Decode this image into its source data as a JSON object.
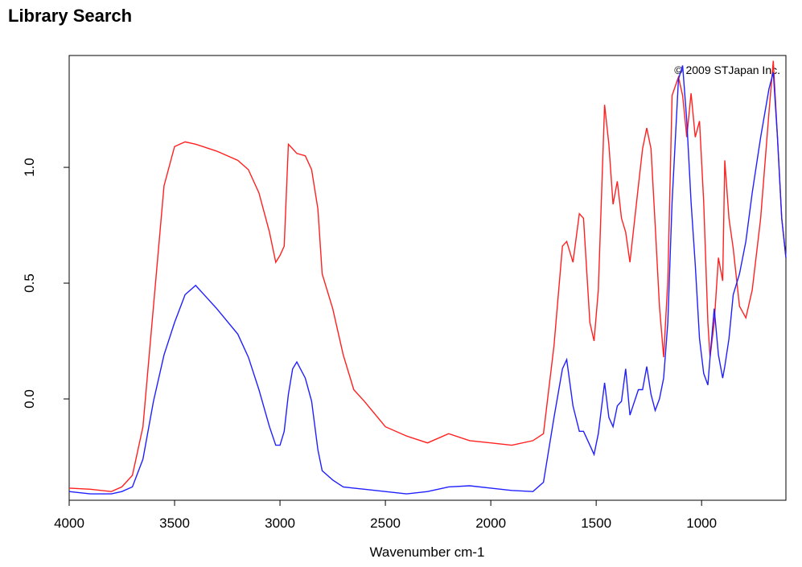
{
  "chart_data": {
    "type": "line",
    "title": "Library Search",
    "annotation": "© 2009 STJapan Inc.",
    "xlabel": "Wavenumber cm-1",
    "xlim": [
      4000,
      600
    ],
    "ylim": [
      -0.4375,
      1.483
    ],
    "xticks": [
      4000,
      3500,
      3000,
      2500,
      2000,
      1500,
      1000
    ],
    "yticks": [
      {
        "value": 0,
        "label": "0.0"
      },
      0.5,
      {
        "value": 1,
        "label": "1.0"
      }
    ],
    "x": [
      4000,
      3900,
      3800,
      3750,
      3700,
      3650,
      3600,
      3550,
      3500,
      3450,
      3400,
      3300,
      3200,
      3150,
      3100,
      3050,
      3020,
      3000,
      2980,
      2960,
      2940,
      2920,
      2880,
      2850,
      2820,
      2800,
      2750,
      2700,
      2650,
      2600,
      2500,
      2400,
      2300,
      2200,
      2100,
      2000,
      1900,
      1800,
      1750,
      1700,
      1660,
      1640,
      1610,
      1580,
      1560,
      1530,
      1510,
      1490,
      1460,
      1440,
      1420,
      1400,
      1380,
      1360,
      1340,
      1300,
      1280,
      1260,
      1240,
      1220,
      1200,
      1180,
      1160,
      1140,
      1110,
      1090,
      1070,
      1050,
      1030,
      1010,
      990,
      970,
      960,
      940,
      920,
      900,
      890,
      870,
      850,
      820,
      790,
      760,
      720,
      680,
      660,
      640,
      620,
      600
    ],
    "series": [
      {
        "color": "#ff2020",
        "values": [
          -0.385,
          -0.39,
          -0.4,
          -0.38,
          -0.33,
          -0.12,
          0.4,
          0.92,
          1.09,
          1.11,
          1.1,
          1.07,
          1.03,
          0.99,
          0.89,
          0.72,
          0.59,
          0.62,
          0.66,
          1.1,
          1.08,
          1.06,
          1.05,
          0.99,
          0.82,
          0.54,
          0.39,
          0.19,
          0.04,
          -0.01,
          -0.12,
          -0.16,
          -0.19,
          -0.15,
          -0.18,
          -0.19,
          -0.2,
          -0.18,
          -0.15,
          0.23,
          0.66,
          0.68,
          0.59,
          0.8,
          0.78,
          0.33,
          0.25,
          0.47,
          1.27,
          1.1,
          0.84,
          0.94,
          0.78,
          0.72,
          0.59,
          0.92,
          1.08,
          1.17,
          1.08,
          0.75,
          0.4,
          0.18,
          0.51,
          1.31,
          1.39,
          1.31,
          1.13,
          1.32,
          1.13,
          1.2,
          0.85,
          0.33,
          0.18,
          0.33,
          0.61,
          0.51,
          1.03,
          0.78,
          0.65,
          0.4,
          0.35,
          0.47,
          0.78,
          1.24,
          1.46,
          1.13,
          0.78,
          0.61
        ]
      },
      {
        "color": "#2020ff",
        "values": [
          -0.4,
          -0.41,
          -0.41,
          -0.4,
          -0.38,
          -0.26,
          -0.01,
          0.19,
          0.33,
          0.45,
          0.49,
          0.39,
          0.28,
          0.18,
          0.04,
          -0.12,
          -0.2,
          -0.2,
          -0.14,
          0.02,
          0.13,
          0.16,
          0.09,
          -0.01,
          -0.22,
          -0.31,
          -0.35,
          -0.38,
          -0.385,
          -0.39,
          -0.4,
          -0.41,
          -0.4,
          -0.38,
          -0.375,
          -0.385,
          -0.395,
          -0.4,
          -0.36,
          -0.08,
          0.13,
          0.17,
          -0.03,
          -0.14,
          -0.14,
          -0.2,
          -0.24,
          -0.15,
          0.07,
          -0.08,
          -0.12,
          -0.03,
          -0.01,
          0.13,
          -0.07,
          0.04,
          0.04,
          0.14,
          0.02,
          -0.05,
          0,
          0.09,
          0.33,
          0.85,
          1.38,
          1.44,
          1.2,
          0.85,
          0.58,
          0.26,
          0.11,
          0.06,
          0.18,
          0.39,
          0.19,
          0.09,
          0.14,
          0.26,
          0.45,
          0.54,
          0.68,
          0.89,
          1.13,
          1.34,
          1.41,
          1.13,
          0.78,
          0.61
        ]
      }
    ]
  }
}
